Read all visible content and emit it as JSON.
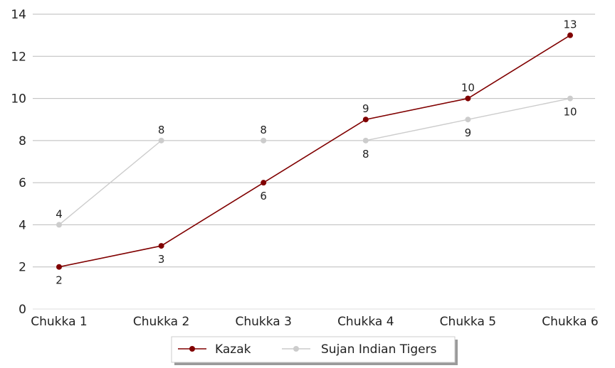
{
  "chart_data": {
    "type": "line",
    "categories": [
      "Chukka 1",
      "Chukka 2",
      "Chukka 3",
      "Chukka 4",
      "Chukka 5",
      "Chukka 6"
    ],
    "series": [
      {
        "name": "Kazak",
        "color": "#800000",
        "values": [
          2,
          3,
          6,
          9,
          10,
          13
        ]
      },
      {
        "name": "Sujan Indian Tigers",
        "color": "#cccccc",
        "values": [
          4,
          8,
          8,
          8,
          9,
          10
        ]
      }
    ],
    "segments": {
      "Sujan Indian Tigers": [
        [
          0,
          1
        ],
        [
          3,
          5
        ]
      ]
    },
    "ylim": [
      0,
      14
    ],
    "yticks": [
      0,
      2,
      4,
      6,
      8,
      10,
      12,
      14
    ],
    "grid": "horizontal",
    "legend": "bottom-center",
    "title": "",
    "xlabel": "",
    "ylabel": ""
  }
}
